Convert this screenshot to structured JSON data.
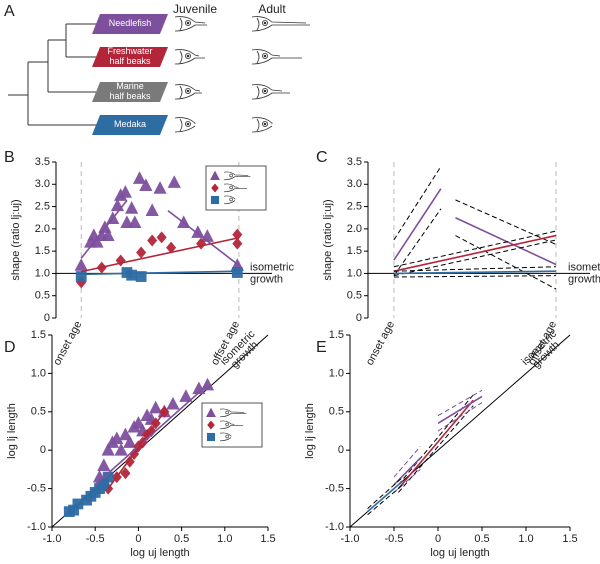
{
  "tree": {
    "panel_label": "A",
    "headers": [
      "Juvenile",
      "Adult"
    ],
    "taxa": [
      {
        "lines": [
          "Needlefish"
        ],
        "color": "#7d4f9d"
      },
      {
        "lines": [
          "Freshwater",
          "half beaks"
        ],
        "color": "#b3263a"
      },
      {
        "lines": [
          "Marine",
          "half beaks"
        ],
        "color": "#7a7a7a"
      },
      {
        "lines": [
          "Medaka"
        ],
        "color": "#2e6ca4"
      }
    ]
  },
  "chart_data": [
    {
      "type": "scatter",
      "panel_label": "B",
      "ylabel": "shape (ratio lj:uj)",
      "xlim": [
        -0.16,
        1.21
      ],
      "ylim": [
        0,
        3.5
      ],
      "xticks": [
        {
          "value": 0,
          "label": "onset age"
        },
        {
          "value": 1,
          "label": "offset age"
        }
      ],
      "xtick_rotate": true,
      "yticks": [
        0,
        0.5,
        {
          "value": 1,
          "label": "1.0"
        },
        1.5,
        {
          "value": 2,
          "label": "2.0"
        },
        2.5,
        {
          "value": 3,
          "label": "3.0"
        },
        3.5
      ],
      "reference": 1,
      "annotation_lines": [
        "isometric",
        "growth"
      ],
      "legend": "upper right",
      "series": [
        {
          "kind": "points",
          "marker": "triangle",
          "color": "#7d4f9d",
          "x": [
            0,
            0.06,
            0.08,
            0.1,
            0.13,
            0.15,
            0.17,
            0.2,
            0.23,
            0.25,
            0.28,
            0.29,
            0.32,
            0.34,
            0.37,
            0.41,
            0.45,
            0.5,
            0.59,
            0.65,
            0.74,
            0.8,
            0.99
          ],
          "values": [
            1.18,
            1.7,
            1.85,
            1.7,
            1.85,
            2.03,
            1.85,
            2.23,
            2.52,
            2.75,
            2.82,
            2.14,
            2.46,
            2.14,
            3.13,
            2.97,
            2.41,
            2.91,
            3.04,
            2.14,
            1.92,
            1.83,
            1.18
          ]
        },
        {
          "kind": "points",
          "marker": "diamond",
          "color": "#b3263a",
          "x": [
            0,
            0.13,
            0.25,
            0.38,
            0.45,
            0.51,
            0.57,
            0.76,
            0.99,
            0.99
          ],
          "values": [
            0.8,
            1.13,
            1.29,
            1.47,
            1.74,
            1.81,
            1.58,
            1.67,
            1.87,
            1.67
          ]
        },
        {
          "kind": "points",
          "marker": "square",
          "color": "#2e6ca4",
          "x": [
            0,
            0.29,
            0.32,
            0.38,
            0.99
          ],
          "values": [
            0.93,
            1.02,
            0.96,
            0.93,
            1.02
          ]
        },
        {
          "kind": "line",
          "color": "#7d4f9d",
          "x": [
            0,
            0.29
          ],
          "values": [
            1.34,
            2.64
          ]
        },
        {
          "kind": "line",
          "color": "#7d4f9d",
          "x": [
            0.55,
            1
          ],
          "values": [
            2.41,
            1.18
          ]
        },
        {
          "kind": "line",
          "color": "#b3263a",
          "x": [
            0,
            1
          ],
          "values": [
            1.04,
            1.8
          ]
        },
        {
          "kind": "line",
          "color": "#2e6ca4",
          "x": [
            0,
            1
          ],
          "values": [
            0.98,
            1.05
          ]
        }
      ]
    },
    {
      "type": "line",
      "panel_label": "C",
      "ylabel": "shape (ratio lj:uj)",
      "xlim": [
        -0.16,
        1.21
      ],
      "ylim": [
        0,
        3.5
      ],
      "xticks": [
        {
          "value": 0,
          "label": "onset age"
        },
        {
          "value": 1,
          "label": "offset age"
        }
      ],
      "xtick_rotate": true,
      "yticks": [
        0,
        0.5,
        {
          "value": 1,
          "label": "1.0"
        },
        1.5,
        {
          "value": 2,
          "label": "2.0"
        },
        2.5,
        {
          "value": 3,
          "label": "3.0"
        },
        3.5
      ],
      "reference": 1,
      "annotation_lines": [
        "isometric",
        "growth"
      ],
      "series": [
        {
          "kind": "line",
          "color": "#7d4f9d",
          "x": [
            0,
            0.29
          ],
          "values": [
            1.3,
            2.9
          ]
        },
        {
          "kind": "dashed",
          "color": "#000000",
          "x": [
            0,
            0.29
          ],
          "values": [
            1.75,
            3.4
          ]
        },
        {
          "kind": "dashed",
          "color": "#000000",
          "x": [
            0,
            0.29
          ],
          "values": [
            0.95,
            2.45
          ]
        },
        {
          "kind": "line",
          "color": "#7d4f9d",
          "x": [
            0.38,
            1
          ],
          "values": [
            2.25,
            1.2
          ]
        },
        {
          "kind": "dashed",
          "color": "#000000",
          "x": [
            0.38,
            1
          ],
          "values": [
            2.65,
            1.65
          ]
        },
        {
          "kind": "dashed",
          "color": "#000000",
          "x": [
            0.38,
            1
          ],
          "values": [
            1.85,
            0.65
          ]
        },
        {
          "kind": "line",
          "color": "#b3263a",
          "x": [
            0,
            1
          ],
          "values": [
            1.05,
            1.85
          ]
        },
        {
          "kind": "dashed",
          "color": "#000000",
          "x": [
            0,
            1
          ],
          "values": [
            1.15,
            1.95
          ]
        },
        {
          "kind": "dashed",
          "color": "#000000",
          "x": [
            0,
            1
          ],
          "values": [
            0.95,
            1.75
          ]
        },
        {
          "kind": "line",
          "color": "#2e6ca4",
          "x": [
            0,
            1
          ],
          "values": [
            1,
            1.05
          ]
        },
        {
          "kind": "dashed",
          "color": "#000000",
          "x": [
            0,
            1
          ],
          "values": [
            1.05,
            1.15
          ]
        },
        {
          "kind": "dashed",
          "color": "#000000",
          "x": [
            0,
            1
          ],
          "values": [
            0.92,
            0.95
          ]
        }
      ]
    },
    {
      "type": "scatter",
      "panel_label": "D",
      "xlabel": "log uj length",
      "ylabel": "log lj length",
      "xlim": [
        -1,
        1.5
      ],
      "ylim": [
        -1,
        1.5
      ],
      "xticks": [
        {
          "value": -1,
          "label": "-1.0"
        },
        -0.5,
        0,
        0.5,
        {
          "value": 1,
          "label": "1.0"
        },
        1.5
      ],
      "yticks": [
        {
          "value": -1,
          "label": "-1.0"
        },
        -0.5,
        0,
        0.5,
        {
          "value": 1,
          "label": "1.0"
        },
        1.5
      ],
      "identity": true,
      "annotation_lines": [
        "isometric",
        "growth"
      ],
      "legend": "lower right",
      "series": [
        {
          "kind": "points",
          "marker": "triangle",
          "color": "#7d4f9d",
          "x": [
            -0.45,
            -0.4,
            -0.35,
            -0.3,
            -0.25,
            -0.2,
            -0.15,
            -0.1,
            -0.05,
            0,
            0.05,
            0.1,
            0.15,
            0.2,
            0.3,
            0.4,
            0.55,
            0.7,
            0.8
          ],
          "values": [
            -0.35,
            -0.2,
            0,
            0.1,
            0.15,
            0,
            0.2,
            0.1,
            0.3,
            0.35,
            0.25,
            0.45,
            0.4,
            0.55,
            0.5,
            0.6,
            0.7,
            0.8,
            0.85
          ]
        },
        {
          "kind": "points",
          "marker": "diamond",
          "color": "#b3263a",
          "x": [
            -0.35,
            -0.25,
            -0.15,
            -0.1,
            -0.05,
            0,
            0.05,
            0.1,
            0.15,
            0.2,
            0.3
          ],
          "values": [
            -0.5,
            -0.35,
            -0.3,
            -0.15,
            -0.05,
            0.05,
            0.1,
            0.2,
            0.25,
            0.35,
            0.5
          ]
        },
        {
          "kind": "points",
          "marker": "square",
          "color": "#2e6ca4",
          "x": [
            -0.8,
            -0.75,
            -0.7,
            -0.6,
            -0.55,
            -0.5,
            -0.45,
            -0.4,
            -0.35
          ],
          "values": [
            -0.8,
            -0.78,
            -0.7,
            -0.65,
            -0.6,
            -0.55,
            -0.5,
            -0.45,
            -0.35
          ]
        },
        {
          "kind": "line",
          "color": "#7d4f9d",
          "x": [
            -0.5,
            0.8
          ],
          "values": [
            -0.45,
            0.85
          ]
        },
        {
          "kind": "line",
          "color": "#b3263a",
          "x": [
            -0.35,
            0.3
          ],
          "values": [
            -0.5,
            0.5
          ]
        },
        {
          "kind": "line",
          "color": "#2e6ca4",
          "x": [
            -0.8,
            -0.35
          ],
          "values": [
            -0.8,
            -0.4
          ]
        }
      ]
    },
    {
      "type": "line",
      "panel_label": "E",
      "xlabel": "log uj length",
      "ylabel": "log lj length",
      "xlim": [
        -1,
        1.5
      ],
      "ylim": [
        -1,
        1.5
      ],
      "xticks": [
        {
          "value": -1,
          "label": "-1.0"
        },
        -0.5,
        0,
        0.5,
        {
          "value": 1,
          "label": "1.0"
        },
        1.5
      ],
      "yticks": [
        {
          "value": -1,
          "label": "-1.0"
        },
        -0.5,
        0,
        0.5,
        {
          "value": 1,
          "label": "1.0"
        },
        1.5
      ],
      "identity": true,
      "annotation_lines": [
        "isometric",
        "growth"
      ],
      "series": [
        {
          "kind": "line",
          "color": "#b3263a",
          "x": [
            -0.45,
            0.4
          ],
          "values": [
            -0.5,
            0.65
          ]
        },
        {
          "kind": "dashed",
          "color": "#000000",
          "x": [
            -0.45,
            0.4
          ],
          "values": [
            -0.45,
            0.72
          ]
        },
        {
          "kind": "dashed",
          "color": "#000000",
          "x": [
            -0.45,
            0.4
          ],
          "values": [
            -0.55,
            0.58
          ]
        },
        {
          "kind": "line",
          "color": "#7d4f9d",
          "x": [
            -0.5,
            -0.2
          ],
          "values": [
            -0.45,
            -0.1
          ]
        },
        {
          "kind": "dashed",
          "color": "#7d4f9d",
          "x": [
            -0.5,
            -0.2
          ],
          "values": [
            -0.35,
            0.05
          ]
        },
        {
          "kind": "dashed",
          "color": "#7d4f9d",
          "x": [
            -0.5,
            -0.2
          ],
          "values": [
            -0.55,
            -0.25
          ]
        },
        {
          "kind": "line",
          "color": "#7d4f9d",
          "x": [
            0,
            0.5
          ],
          "values": [
            0.35,
            0.7
          ]
        },
        {
          "kind": "dashed",
          "color": "#7d4f9d",
          "x": [
            0,
            0.5
          ],
          "values": [
            0.45,
            0.78
          ]
        },
        {
          "kind": "dashed",
          "color": "#7d4f9d",
          "x": [
            0,
            0.5
          ],
          "values": [
            0.25,
            0.62
          ]
        },
        {
          "kind": "line",
          "color": "#2e6ca4",
          "x": [
            -0.8,
            -0.4
          ],
          "values": [
            -0.8,
            -0.4
          ]
        },
        {
          "kind": "dashed",
          "color": "#000000",
          "x": [
            -0.8,
            -0.4
          ],
          "values": [
            -0.76,
            -0.35
          ]
        },
        {
          "kind": "dashed",
          "color": "#000000",
          "x": [
            -0.8,
            -0.4
          ],
          "values": [
            -0.84,
            -0.45
          ]
        }
      ]
    }
  ]
}
